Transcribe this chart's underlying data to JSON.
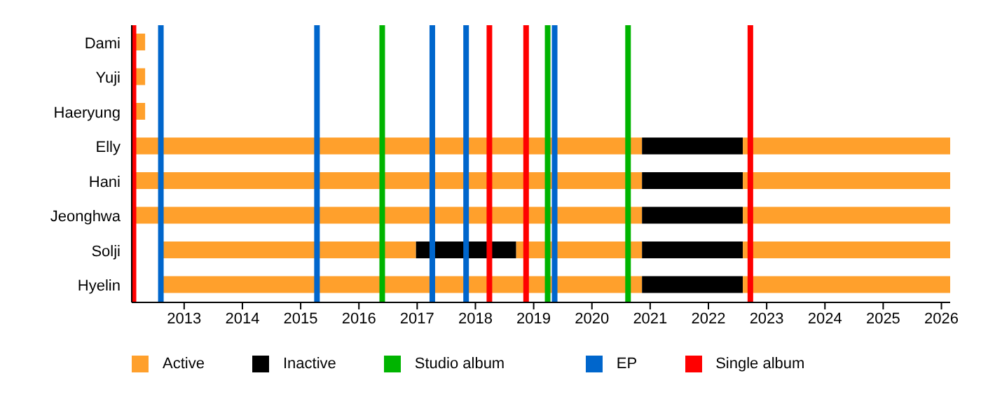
{
  "chart_data": {
    "type": "bar",
    "orientation": "horizontal",
    "categories": [
      "Dami",
      "Yuji",
      "Haeryung",
      "Elly",
      "Hani",
      "Jeonghwa",
      "Solji",
      "Hyelin"
    ],
    "series": [
      {
        "name": "Active",
        "color": "#ffa02c",
        "base": [
          2012.13,
          2012.13,
          2012.13,
          2012.13,
          2012.13,
          2012.13,
          2012.6,
          2012.6
        ],
        "values": [
          0.2,
          0.2,
          0.2,
          8.73,
          8.73,
          8.73,
          4.38,
          8.26
        ]
      },
      {
        "name": "Inactive",
        "color": "#000000",
        "base": [
          null,
          null,
          null,
          2020.86,
          2020.86,
          2020.86,
          2016.98,
          2020.86
        ],
        "values": [
          null,
          null,
          null,
          1.73,
          1.73,
          1.73,
          1.72,
          1.73
        ]
      },
      {
        "color": "#ffa02c",
        "base": [
          null,
          null,
          null,
          2022.59,
          2022.59,
          2022.59,
          2018.7,
          2022.59
        ],
        "values": [
          null,
          null,
          null,
          3.56,
          3.56,
          3.56,
          2.16,
          3.56
        ]
      },
      {
        "color": "#000000",
        "base": [
          null,
          null,
          null,
          null,
          null,
          null,
          2020.86,
          null
        ],
        "values": [
          null,
          null,
          null,
          null,
          null,
          null,
          1.73,
          null
        ]
      },
      {
        "color": "#ffa02c",
        "base": [
          null,
          null,
          null,
          null,
          null,
          null,
          2022.59,
          null
        ],
        "values": [
          null,
          null,
          null,
          null,
          null,
          null,
          3.56,
          null
        ]
      }
    ],
    "xlim": [
      2012.1,
      2026.15
    ],
    "xticks": [
      2013,
      2014,
      2015,
      2016,
      2017,
      2018,
      2019,
      2020,
      2021,
      2022,
      2023,
      2024,
      2025,
      2026
    ],
    "ref_lines": [
      {
        "axis": "x",
        "value": 2016.4,
        "label": "Studio album",
        "color": "#00b400"
      },
      {
        "axis": "x",
        "value": 2019.24,
        "color": "#00b400"
      },
      {
        "axis": "x",
        "value": 2020.62,
        "color": "#00b400"
      },
      {
        "axis": "x",
        "value": 2012.6,
        "label": "EP",
        "color": "#0066cc"
      },
      {
        "axis": "x",
        "value": 2015.28,
        "color": "#0066cc"
      },
      {
        "axis": "x",
        "value": 2017.26,
        "color": "#0066cc"
      },
      {
        "axis": "x",
        "value": 2017.84,
        "color": "#0066cc"
      },
      {
        "axis": "x",
        "value": 2019.36,
        "color": "#0066cc"
      },
      {
        "axis": "x",
        "value": 2012.13,
        "label": "Single album",
        "color": "#ff0000"
      },
      {
        "axis": "x",
        "value": 2018.24,
        "color": "#ff0000"
      },
      {
        "axis": "x",
        "value": 2018.87,
        "color": "#ff0000"
      },
      {
        "axis": "x",
        "value": 2022.72,
        "color": "#ff0000"
      }
    ],
    "legend": "bottom"
  }
}
